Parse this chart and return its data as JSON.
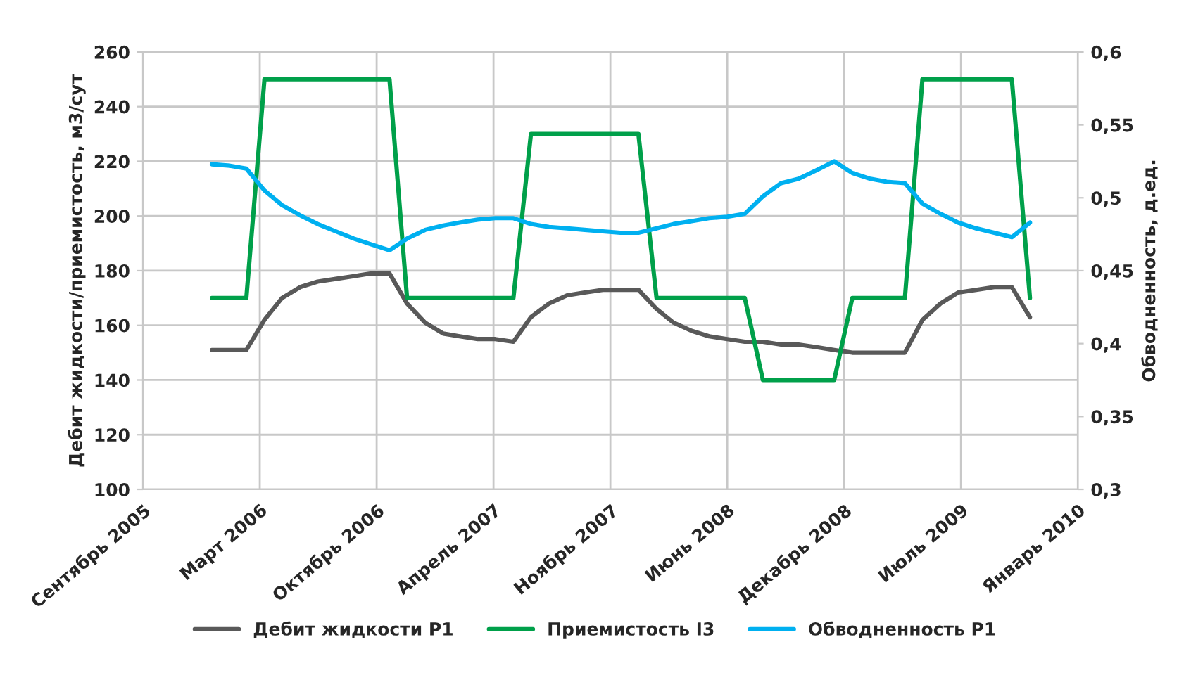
{
  "chart_data": {
    "type": "line",
    "ylabel": "Дебит жидкости/приемистость, м3/сут",
    "y2label": "Обводненность, д.ед.",
    "x": [
      "2006-01",
      "2006-02",
      "2006-03",
      "2006-04",
      "2006-05",
      "2006-06",
      "2006-07",
      "2006-08",
      "2006-09",
      "2006-10",
      "2006-11",
      "2006-12",
      "2007-01",
      "2007-02",
      "2007-03",
      "2007-04",
      "2007-05",
      "2007-06",
      "2007-07",
      "2007-08",
      "2007-09",
      "2007-10",
      "2007-11",
      "2007-12",
      "2008-01",
      "2008-02",
      "2008-03",
      "2008-04",
      "2008-05",
      "2008-06",
      "2008-07",
      "2008-08",
      "2008-09",
      "2008-10",
      "2008-11",
      "2008-12",
      "2009-01",
      "2009-02",
      "2009-03",
      "2009-04",
      "2009-05",
      "2009-06",
      "2009-07",
      "2009-08",
      "2009-09",
      "2009-10",
      "2009-11"
    ],
    "series": [
      {
        "name": "Дебит жидкости P1",
        "color": "#595959",
        "values": [
          151,
          151,
          151,
          162,
          170,
          174,
          176,
          177,
          178,
          179,
          179,
          168,
          161,
          157,
          156,
          155,
          155,
          154,
          163,
          168,
          171,
          172,
          173,
          173,
          173,
          166,
          161,
          158,
          156,
          155,
          154,
          154,
          153,
          153,
          152,
          151,
          150,
          150,
          150,
          150,
          162,
          168,
          172,
          173,
          174,
          174,
          163
        ]
      },
      {
        "name": "Приемистость I3",
        "color": "#00a04a",
        "values": [
          170,
          170,
          170,
          250,
          250,
          250,
          250,
          250,
          250,
          250,
          250,
          170,
          170,
          170,
          170,
          170,
          170,
          170,
          230,
          230,
          230,
          230,
          230,
          230,
          230,
          170,
          170,
          170,
          170,
          170,
          170,
          140,
          140,
          140,
          140,
          140,
          170,
          170,
          170,
          170,
          250,
          250,
          250,
          250,
          250,
          250,
          170
        ]
      },
      {
        "name": "Обводненность P1",
        "color": "#00b0f0",
        "axis": "y2",
        "values": [
          0.523,
          0.522,
          0.52,
          0.505,
          0.495,
          0.488,
          0.482,
          0.477,
          0.472,
          0.468,
          0.464,
          0.472,
          0.478,
          0.481,
          0.483,
          0.485,
          0.486,
          0.486,
          0.482,
          0.48,
          0.479,
          0.478,
          0.477,
          0.476,
          0.476,
          0.479,
          0.482,
          0.484,
          0.486,
          0.487,
          0.489,
          0.501,
          0.51,
          0.513,
          0.519,
          0.525,
          0.517,
          0.513,
          0.511,
          0.51,
          0.496,
          0.489,
          0.483,
          0.479,
          0.476,
          0.473,
          0.483
        ]
      }
    ],
    "xlim": [
      "2005-09-05",
      "2010-01-22"
    ],
    "xticks": [
      {
        "value": "2005-09-05",
        "label": "Сентябрь 2005"
      },
      {
        "value": "2006-03-24",
        "label": "Март 2006"
      },
      {
        "value": "2006-10-10",
        "label": "Октябрь 2006"
      },
      {
        "value": "2007-04-28",
        "label": "Апрель 2007"
      },
      {
        "value": "2007-11-14",
        "label": "Ноябрь 2007"
      },
      {
        "value": "2008-06-01",
        "label": "Июнь 2008"
      },
      {
        "value": "2008-12-18",
        "label": "Декабрь 2008"
      },
      {
        "value": "2009-07-06",
        "label": "Июль 2009"
      },
      {
        "value": "2010-01-22",
        "label": "Январь 2010"
      }
    ],
    "ylim": [
      100,
      260
    ],
    "yticks": [
      100,
      120,
      140,
      160,
      180,
      200,
      220,
      240,
      260
    ],
    "y2lim": [
      0.3,
      0.6
    ],
    "y2ticks": [
      {
        "value": 0.3,
        "label": "0,3"
      },
      {
        "value": 0.35,
        "label": "0,35"
      },
      {
        "value": 0.4,
        "label": "0,4"
      },
      {
        "value": 0.45,
        "label": "0,45"
      },
      {
        "value": 0.5,
        "label": "0,5"
      },
      {
        "value": 0.55,
        "label": "0,55"
      },
      {
        "value": 0.6,
        "label": "0,6"
      }
    ],
    "grid": true,
    "legend": "bottom",
    "marker": "none",
    "line_style": "solid"
  }
}
